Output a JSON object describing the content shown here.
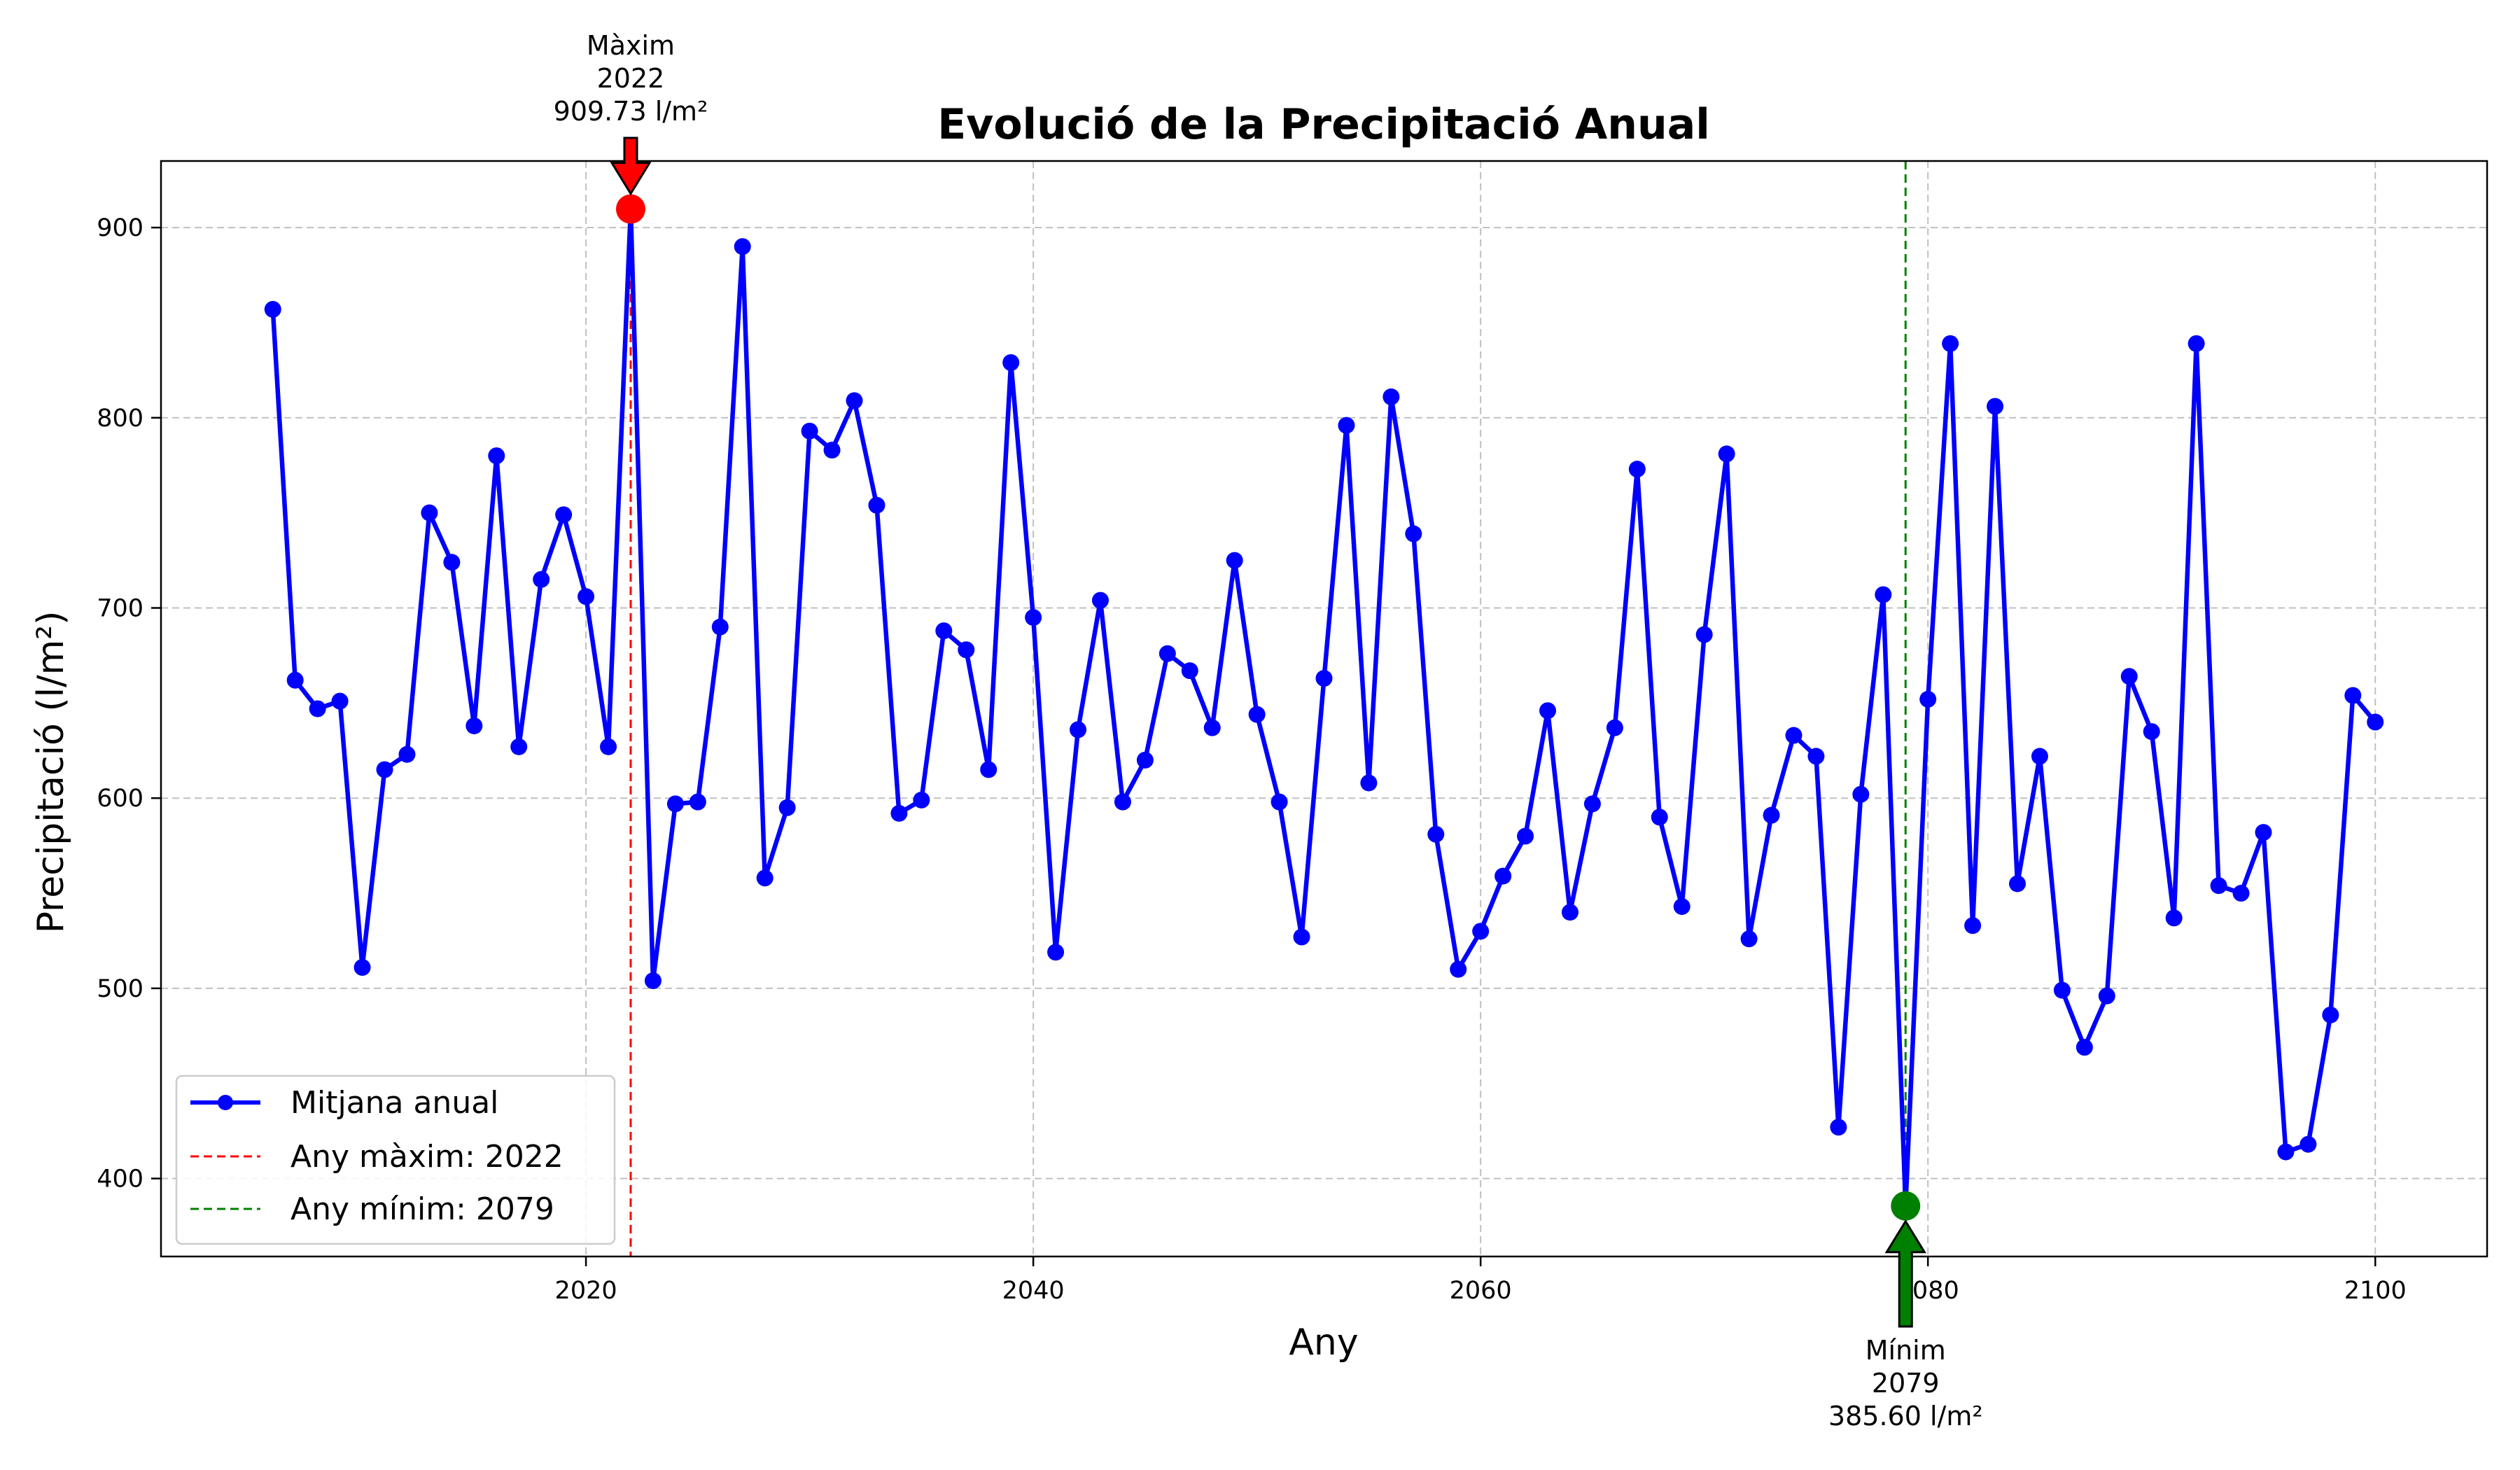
{
  "chart_data": {
    "type": "line",
    "title": "Evolució de la Precipitació Anual",
    "xlabel": "Any",
    "ylabel": "Precipitació (l/m²)",
    "xlim": [
      2001,
      2105
    ],
    "ylim": [
      359,
      935
    ],
    "xticks": [
      2020,
      2040,
      2060,
      2080,
      2100
    ],
    "yticks": [
      400,
      500,
      600,
      700,
      800,
      900
    ],
    "grid": true,
    "legend_position": "lower-left",
    "series": [
      {
        "name": "Mitjana anual",
        "color": "#0000ff",
        "x": [
          2006,
          2007,
          2008,
          2009,
          2010,
          2011,
          2012,
          2013,
          2014,
          2015,
          2016,
          2017,
          2018,
          2019,
          2020,
          2021,
          2022,
          2023,
          2024,
          2025,
          2026,
          2027,
          2028,
          2029,
          2030,
          2031,
          2032,
          2033,
          2034,
          2035,
          2036,
          2037,
          2038,
          2039,
          2040,
          2041,
          2042,
          2043,
          2044,
          2045,
          2046,
          2047,
          2048,
          2049,
          2050,
          2051,
          2052,
          2053,
          2054,
          2055,
          2056,
          2057,
          2058,
          2059,
          2060,
          2061,
          2062,
          2063,
          2064,
          2065,
          2066,
          2067,
          2068,
          2069,
          2070,
          2071,
          2072,
          2073,
          2074,
          2075,
          2076,
          2077,
          2078,
          2079,
          2080,
          2081,
          2082,
          2083,
          2084,
          2085,
          2086,
          2087,
          2088,
          2089,
          2090,
          2091,
          2092,
          2093,
          2094,
          2095,
          2096,
          2097,
          2098,
          2099,
          2100
        ],
        "y": [
          857,
          662,
          647,
          651,
          511,
          615,
          623,
          750,
          724,
          638,
          780,
          627,
          715,
          749,
          706,
          627,
          909.73,
          504,
          597,
          598,
          690,
          890,
          558,
          595,
          793,
          783,
          809,
          754,
          592,
          599,
          688,
          678,
          615,
          829,
          695,
          519,
          636,
          704,
          598,
          620,
          676,
          667,
          637,
          725,
          644,
          598,
          527,
          663,
          796,
          608,
          811,
          739,
          581,
          510,
          530,
          559,
          580,
          646,
          540,
          597,
          637,
          773,
          590,
          543,
          686,
          781,
          526,
          591,
          633,
          622,
          427,
          602,
          707,
          385.6,
          652,
          839,
          533,
          806,
          555,
          622,
          499,
          469,
          496,
          664,
          635,
          537,
          839,
          554,
          550,
          582,
          414,
          418,
          486,
          654,
          640
        ]
      }
    ],
    "vlines": [
      {
        "x": 2022,
        "color": "#ff0000",
        "label": "Any màxim: 2022"
      },
      {
        "x": 2079,
        "color": "#008000",
        "label": "Any mínim: 2079"
      }
    ],
    "annotations": {
      "max": {
        "x": 2022,
        "y": 909.73,
        "color": "#ff0000",
        "lines": [
          "Màxim",
          "2022",
          "909.73 l/m²"
        ]
      },
      "min": {
        "x": 2079,
        "y": 385.6,
        "color": "#008000",
        "lines": [
          "Mínim",
          "2079",
          "385.60 l/m²"
        ]
      }
    }
  }
}
